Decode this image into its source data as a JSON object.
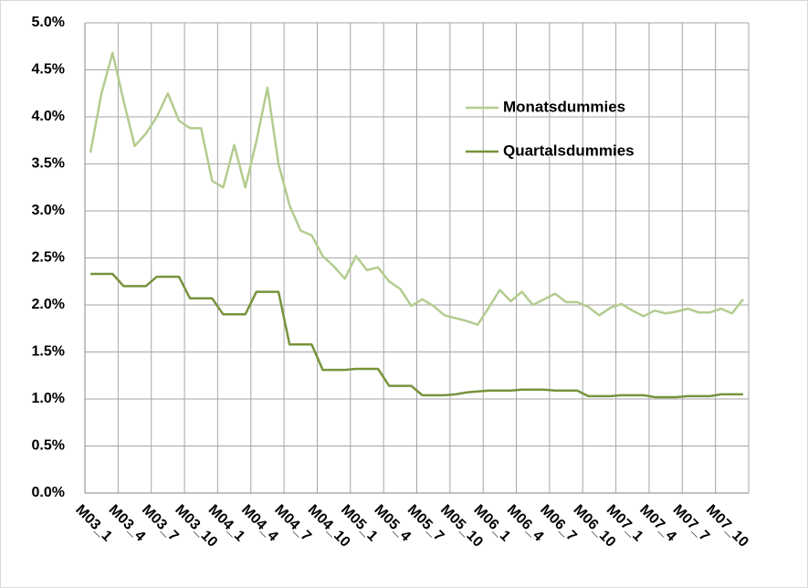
{
  "chart_data": {
    "type": "line",
    "categories": [
      "M03_1",
      null,
      null,
      "M03_4",
      null,
      null,
      "M03_7",
      null,
      null,
      "M03_10",
      null,
      null,
      "M04_1",
      null,
      null,
      "M04_4",
      null,
      null,
      "M04_7",
      null,
      null,
      "M04_10",
      null,
      null,
      "M05_1",
      null,
      null,
      "M05_4",
      null,
      null,
      "M05_7",
      null,
      null,
      "M05_10",
      null,
      null,
      "M06_1",
      null,
      null,
      "M06_4",
      null,
      null,
      "M06_7",
      null,
      null,
      "M06_10",
      null,
      null,
      "M07_1",
      null,
      null,
      "M07_4",
      null,
      null,
      "M07_7",
      null,
      null,
      "M07_10",
      null,
      null
    ],
    "series": [
      {
        "name": "Monatsdummies",
        "color": "#b3cc8f",
        "values": [
          3.62,
          4.25,
          4.68,
          4.17,
          3.69,
          3.82,
          4.0,
          4.25,
          3.96,
          3.88,
          3.88,
          3.32,
          3.25,
          3.7,
          3.25,
          3.74,
          4.31,
          3.5,
          3.06,
          2.79,
          2.74,
          2.52,
          2.41,
          2.28,
          2.52,
          2.37,
          2.4,
          2.25,
          2.17,
          1.99,
          2.06,
          1.99,
          1.89,
          1.86,
          1.83,
          1.79,
          1.97,
          2.16,
          2.04,
          2.14,
          2.0,
          2.06,
          2.12,
          2.03,
          2.03,
          1.98,
          1.89,
          1.97,
          2.01,
          1.94,
          1.88,
          1.94,
          1.91,
          1.93,
          1.96,
          1.92,
          1.92,
          1.96,
          1.91,
          2.06
        ]
      },
      {
        "name": "Quartalsdummies",
        "color": "#77933c",
        "values": [
          2.33,
          2.33,
          2.33,
          2.2,
          2.2,
          2.2,
          2.3,
          2.3,
          2.3,
          2.07,
          2.07,
          2.07,
          1.9,
          1.9,
          1.9,
          2.14,
          2.14,
          2.14,
          1.58,
          1.58,
          1.58,
          1.31,
          1.31,
          1.31,
          1.32,
          1.32,
          1.32,
          1.14,
          1.14,
          1.14,
          1.04,
          1.04,
          1.04,
          1.05,
          1.07,
          1.08,
          1.09,
          1.09,
          1.09,
          1.1,
          1.1,
          1.1,
          1.09,
          1.09,
          1.09,
          1.03,
          1.03,
          1.03,
          1.04,
          1.04,
          1.04,
          1.02,
          1.02,
          1.02,
          1.03,
          1.03,
          1.03,
          1.05,
          1.05,
          1.05
        ]
      }
    ],
    "ylim": [
      0,
      5
    ],
    "yticks": [
      {
        "value": 0,
        "label": "0.0%"
      },
      {
        "value": 0.5,
        "label": "0.5%"
      },
      {
        "value": 1,
        "label": "1.0%"
      },
      {
        "value": 1.5,
        "label": "1.5%"
      },
      {
        "value": 2,
        "label": "2.0%"
      },
      {
        "value": 2.5,
        "label": "2.5%"
      },
      {
        "value": 3,
        "label": "3.0%"
      },
      {
        "value": 3.5,
        "label": "3.5%"
      },
      {
        "value": 4,
        "label": "4.0%"
      },
      {
        "value": 4.5,
        "label": "4.5%"
      },
      {
        "value": 5,
        "label": "5.0%"
      }
    ],
    "grid": true,
    "legend": "upper right"
  }
}
